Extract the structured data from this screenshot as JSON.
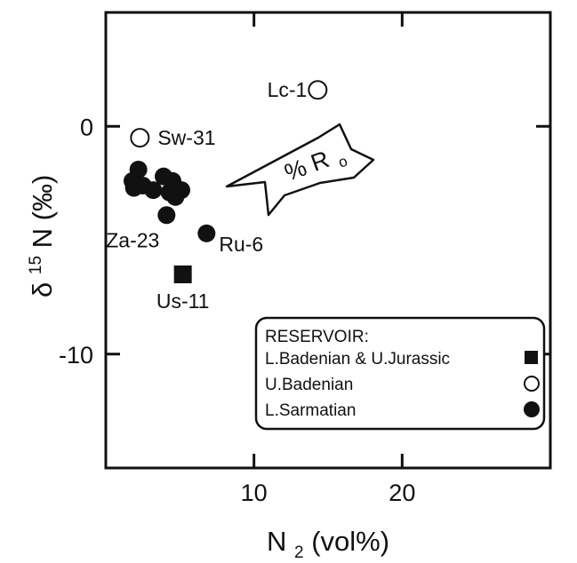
{
  "chart_data": {
    "type": "scatter",
    "xlabel": {
      "base": "N",
      "sub": "2",
      "rest": " (vol%)"
    },
    "ylabel": {
      "base": "δ",
      "sup": "15",
      "rest": "N (‰)"
    },
    "xlim": [
      0,
      30
    ],
    "ylim": [
      -15,
      5
    ],
    "xticks": [
      {
        "value": 10,
        "label": "10"
      },
      {
        "value": 20,
        "label": "20"
      }
    ],
    "yticks": [
      {
        "value": 0,
        "label": "0"
      },
      {
        "value": -10,
        "label": "-10"
      }
    ],
    "grid": false,
    "legend_position": "bottom-right",
    "legend": {
      "title": "RESERVOIR:",
      "entries": [
        {
          "label": "L.Badenian & U.Jurassic",
          "marker": "filled-square"
        },
        {
          "label": "U.Badenian",
          "marker": "open-circle"
        },
        {
          "label": "L.Sarmatian",
          "marker": "filled-circle"
        }
      ]
    },
    "series": [
      {
        "reservoir": "L.Badenian & U.Jurassic",
        "marker": "filled-square",
        "points": [
          {
            "x": 5.2,
            "y": -6.5,
            "label": "Us-11"
          }
        ]
      },
      {
        "reservoir": "U.Badenian",
        "marker": "open-circle",
        "points": [
          {
            "x": 14.3,
            "y": 1.6,
            "label": "Lc-1"
          },
          {
            "x": 2.3,
            "y": -0.5,
            "label": "Sw-31"
          }
        ]
      },
      {
        "reservoir": "L.Sarmatian",
        "marker": "filled-circle",
        "points": [
          {
            "x": 2.2,
            "y": -1.9,
            "label": ""
          },
          {
            "x": 1.8,
            "y": -2.4,
            "label": ""
          },
          {
            "x": 2.5,
            "y": -2.6,
            "label": ""
          },
          {
            "x": 1.9,
            "y": -2.7,
            "label": ""
          },
          {
            "x": 3.2,
            "y": -2.8,
            "label": ""
          },
          {
            "x": 3.9,
            "y": -2.2,
            "label": ""
          },
          {
            "x": 4.5,
            "y": -2.4,
            "label": ""
          },
          {
            "x": 4.3,
            "y": -2.9,
            "label": ""
          },
          {
            "x": 5.1,
            "y": -2.8,
            "label": ""
          },
          {
            "x": 4.7,
            "y": -3.1,
            "label": ""
          },
          {
            "x": 4.1,
            "y": -3.9,
            "label": "Za-23"
          },
          {
            "x": 6.8,
            "y": -4.7,
            "label": "Ru-6"
          }
        ]
      }
    ],
    "annotation": {
      "text": "% R",
      "sub": "o",
      "type": "arrow",
      "direction": "up-right"
    }
  }
}
